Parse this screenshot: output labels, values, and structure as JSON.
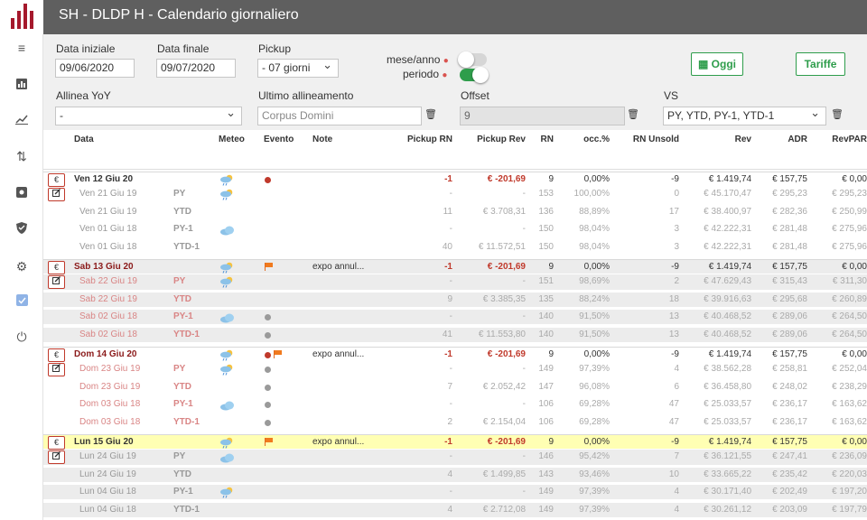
{
  "app": {
    "title": "SH - DLDP H - Calendario giornaliero"
  },
  "filters": {
    "data_iniziale_label": "Data iniziale",
    "data_iniziale": "09/06/2020",
    "data_finale_label": "Data finale",
    "data_finale": "09/07/2020",
    "pickup_label": "Pickup",
    "pickup": "- 07 giorni",
    "mese_anno_label": "mese/anno",
    "periodo_label": "periodo",
    "oggi": "Oggi",
    "tariffe": "Tariffe",
    "allinea_label": "Allinea YoY",
    "allinea": "-",
    "ultimo_label": "Ultimo allineamento",
    "ultimo_placeholder": "Corpus Domini",
    "offset_label": "Offset",
    "offset": "9",
    "vs_label": "VS",
    "vs": "PY, YTD, PY-1, YTD-1"
  },
  "colors": {
    "accent": "#2e9d4b",
    "red": "#c0392b",
    "toggle_on": "#2e9d4b",
    "toggle_off": "#d6d6d6"
  },
  "toggles": {
    "mese_anno_on": false,
    "periodo_on": true
  },
  "columns": [
    "Data",
    "Meteo",
    "Evento",
    "Note",
    "Pickup RN",
    "Pickup Rev",
    "RN",
    "occ.%",
    "RN Unsold",
    "Rev",
    "ADR",
    "RevPAR"
  ],
  "rows": [
    {
      "kind": "main",
      "btn": "€",
      "date": "Ven 12 Giu 20",
      "type": "",
      "meteo": "sun-cloud-rain",
      "evento": [
        "dot-red"
      ],
      "note": "",
      "prn": "-1",
      "prev": "€ -201,69",
      "rn": "9",
      "occ": "0,00%",
      "unsold": "-9",
      "rev": "€ 1.419,74",
      "adr": "€ 157,75",
      "revpar": "€ 0,00"
    },
    {
      "kind": "sub",
      "btn": "edit",
      "date": "Ven 21 Giu 19",
      "type": "PY",
      "meteo": "sun-cloud-rain",
      "evento": [],
      "note": "",
      "prn": "-",
      "prev": "-",
      "rn": "153",
      "occ": "100,00%",
      "unsold": "0",
      "rev": "€ 45.170,47",
      "adr": "€ 295,23",
      "revpar": "€ 295,23"
    },
    {
      "kind": "sub",
      "btn": "",
      "date": "Ven 21 Giu 19",
      "type": "YTD",
      "meteo": "",
      "evento": [],
      "note": "",
      "prn": "11",
      "prev": "€ 3.708,31",
      "rn": "136",
      "occ": "88,89%",
      "unsold": "17",
      "rev": "€ 38.400,97",
      "adr": "€ 282,36",
      "revpar": "€ 250,99"
    },
    {
      "kind": "sub",
      "btn": "",
      "date": "Ven 01 Giu 18",
      "type": "PY-1",
      "meteo": "cloud",
      "evento": [],
      "note": "",
      "prn": "-",
      "prev": "-",
      "rn": "150",
      "occ": "98,04%",
      "unsold": "3",
      "rev": "€ 42.222,31",
      "adr": "€ 281,48",
      "revpar": "€ 275,96"
    },
    {
      "kind": "sub",
      "btn": "",
      "date": "Ven 01 Giu 18",
      "type": "YTD-1",
      "meteo": "",
      "evento": [],
      "note": "",
      "prn": "40",
      "prev": "€ 11.572,51",
      "rn": "150",
      "occ": "98,04%",
      "unsold": "3",
      "rev": "€ 42.222,31",
      "adr": "€ 281,48",
      "revpar": "€ 275,96"
    },
    {
      "kind": "main",
      "btn": "€",
      "date": "Sab 13 Giu 20",
      "type": "",
      "meteo": "sun-cloud-rain",
      "evento": [
        "flag"
      ],
      "note": "expo annul...",
      "prn": "-1",
      "prev": "€ -201,69",
      "rn": "9",
      "occ": "0,00%",
      "unsold": "-9",
      "rev": "€ 1.419,74",
      "adr": "€ 157,75",
      "revpar": "€ 0,00"
    },
    {
      "kind": "sub",
      "btn": "edit",
      "date": "Sab 22 Giu 19",
      "type": "PY",
      "meteo": "sun-cloud-rain",
      "evento": [],
      "note": "",
      "prn": "-",
      "prev": "-",
      "rn": "151",
      "occ": "98,69%",
      "unsold": "2",
      "rev": "€ 47.629,43",
      "adr": "€ 315,43",
      "revpar": "€ 311,30"
    },
    {
      "kind": "sub",
      "btn": "",
      "date": "Sab 22 Giu 19",
      "type": "YTD",
      "meteo": "",
      "evento": [],
      "note": "",
      "prn": "9",
      "prev": "€ 3.385,35",
      "rn": "135",
      "occ": "88,24%",
      "unsold": "18",
      "rev": "€ 39.916,63",
      "adr": "€ 295,68",
      "revpar": "€ 260,89"
    },
    {
      "kind": "sub",
      "btn": "",
      "date": "Sab 02 Giu 18",
      "type": "PY-1",
      "meteo": "cloud",
      "evento": [
        "dot-gray"
      ],
      "note": "",
      "prn": "-",
      "prev": "-",
      "rn": "140",
      "occ": "91,50%",
      "unsold": "13",
      "rev": "€ 40.468,52",
      "adr": "€ 289,06",
      "revpar": "€ 264,50"
    },
    {
      "kind": "sub",
      "btn": "",
      "date": "Sab 02 Giu 18",
      "type": "YTD-1",
      "meteo": "",
      "evento": [
        "dot-gray"
      ],
      "note": "",
      "prn": "41",
      "prev": "€ 11.553,80",
      "rn": "140",
      "occ": "91,50%",
      "unsold": "13",
      "rev": "€ 40.468,52",
      "adr": "€ 289,06",
      "revpar": "€ 264,50"
    },
    {
      "kind": "main",
      "btn": "€",
      "date": "Dom 14 Giu 20",
      "type": "",
      "meteo": "sun-cloud-rain",
      "evento": [
        "dot-red",
        "flag"
      ],
      "note": "expo annul...",
      "prn": "-1",
      "prev": "€ -201,69",
      "rn": "9",
      "occ": "0,00%",
      "unsold": "-9",
      "rev": "€ 1.419,74",
      "adr": "€ 157,75",
      "revpar": "€ 0,00"
    },
    {
      "kind": "sub",
      "btn": "edit",
      "date": "Dom 23 Giu 19",
      "type": "PY",
      "meteo": "sun-cloud-rain",
      "evento": [
        "dot-gray"
      ],
      "note": "",
      "prn": "-",
      "prev": "-",
      "rn": "149",
      "occ": "97,39%",
      "unsold": "4",
      "rev": "€ 38.562,28",
      "adr": "€ 258,81",
      "revpar": "€ 252,04"
    },
    {
      "kind": "sub",
      "btn": "",
      "date": "Dom 23 Giu 19",
      "type": "YTD",
      "meteo": "",
      "evento": [
        "dot-gray"
      ],
      "note": "",
      "prn": "7",
      "prev": "€ 2.052,42",
      "rn": "147",
      "occ": "96,08%",
      "unsold": "6",
      "rev": "€ 36.458,80",
      "adr": "€ 248,02",
      "revpar": "€ 238,29"
    },
    {
      "kind": "sub",
      "btn": "",
      "date": "Dom 03 Giu 18",
      "type": "PY-1",
      "meteo": "cloud",
      "evento": [
        "dot-gray"
      ],
      "note": "",
      "prn": "-",
      "prev": "-",
      "rn": "106",
      "occ": "69,28%",
      "unsold": "47",
      "rev": "€ 25.033,57",
      "adr": "€ 236,17",
      "revpar": "€ 163,62"
    },
    {
      "kind": "sub",
      "btn": "",
      "date": "Dom 03 Giu 18",
      "type": "YTD-1",
      "meteo": "",
      "evento": [
        "dot-gray"
      ],
      "note": "",
      "prn": "2",
      "prev": "€ 2.154,04",
      "rn": "106",
      "occ": "69,28%",
      "unsold": "47",
      "rev": "€ 25.033,57",
      "adr": "€ 236,17",
      "revpar": "€ 163,62"
    },
    {
      "kind": "main",
      "btn": "€",
      "date": "Lun 15 Giu 20",
      "type": "",
      "meteo": "sun-cloud-rain",
      "evento": [
        "flag"
      ],
      "note": "expo annul...",
      "prn": "-1",
      "prev": "€ -201,69",
      "rn": "9",
      "occ": "0,00%",
      "unsold": "-9",
      "rev": "€ 1.419,74",
      "adr": "€ 157,75",
      "revpar": "€ 0,00"
    },
    {
      "kind": "sub",
      "btn": "edit",
      "date": "Lun 24 Giu 19",
      "type": "PY",
      "meteo": "cloud",
      "evento": [],
      "note": "",
      "prn": "-",
      "prev": "-",
      "rn": "146",
      "occ": "95,42%",
      "unsold": "7",
      "rev": "€ 36.121,55",
      "adr": "€ 247,41",
      "revpar": "€ 236,09"
    },
    {
      "kind": "sub",
      "btn": "",
      "date": "Lun 24 Giu 19",
      "type": "YTD",
      "meteo": "",
      "evento": [],
      "note": "",
      "prn": "4",
      "prev": "€ 1.499,85",
      "rn": "143",
      "occ": "93,46%",
      "unsold": "10",
      "rev": "€ 33.665,22",
      "adr": "€ 235,42",
      "revpar": "€ 220,03"
    },
    {
      "kind": "sub",
      "btn": "",
      "date": "Lun 04 Giu 18",
      "type": "PY-1",
      "meteo": "sun-cloud-rain",
      "evento": [],
      "note": "",
      "prn": "-",
      "prev": "-",
      "rn": "149",
      "occ": "97,39%",
      "unsold": "4",
      "rev": "€ 30.171,40",
      "adr": "€ 202,49",
      "revpar": "€ 197,20"
    },
    {
      "kind": "sub",
      "btn": "",
      "date": "Lun 04 Giu 18",
      "type": "YTD-1",
      "meteo": "",
      "evento": [],
      "note": "",
      "prn": "4",
      "prev": "€ 2.712,08",
      "rn": "149",
      "occ": "97,39%",
      "unsold": "4",
      "rev": "€ 30.261,12",
      "adr": "€ 203,09",
      "revpar": "€ 197,79"
    }
  ],
  "sidebar": {
    "icons": [
      "menu-icon",
      "bar-chart-icon",
      "line-chart-icon",
      "sort-arrows-icon",
      "settings-box-icon",
      "shield-icon",
      "gear-icon",
      "checkbox-icon",
      "power-icon"
    ]
  }
}
